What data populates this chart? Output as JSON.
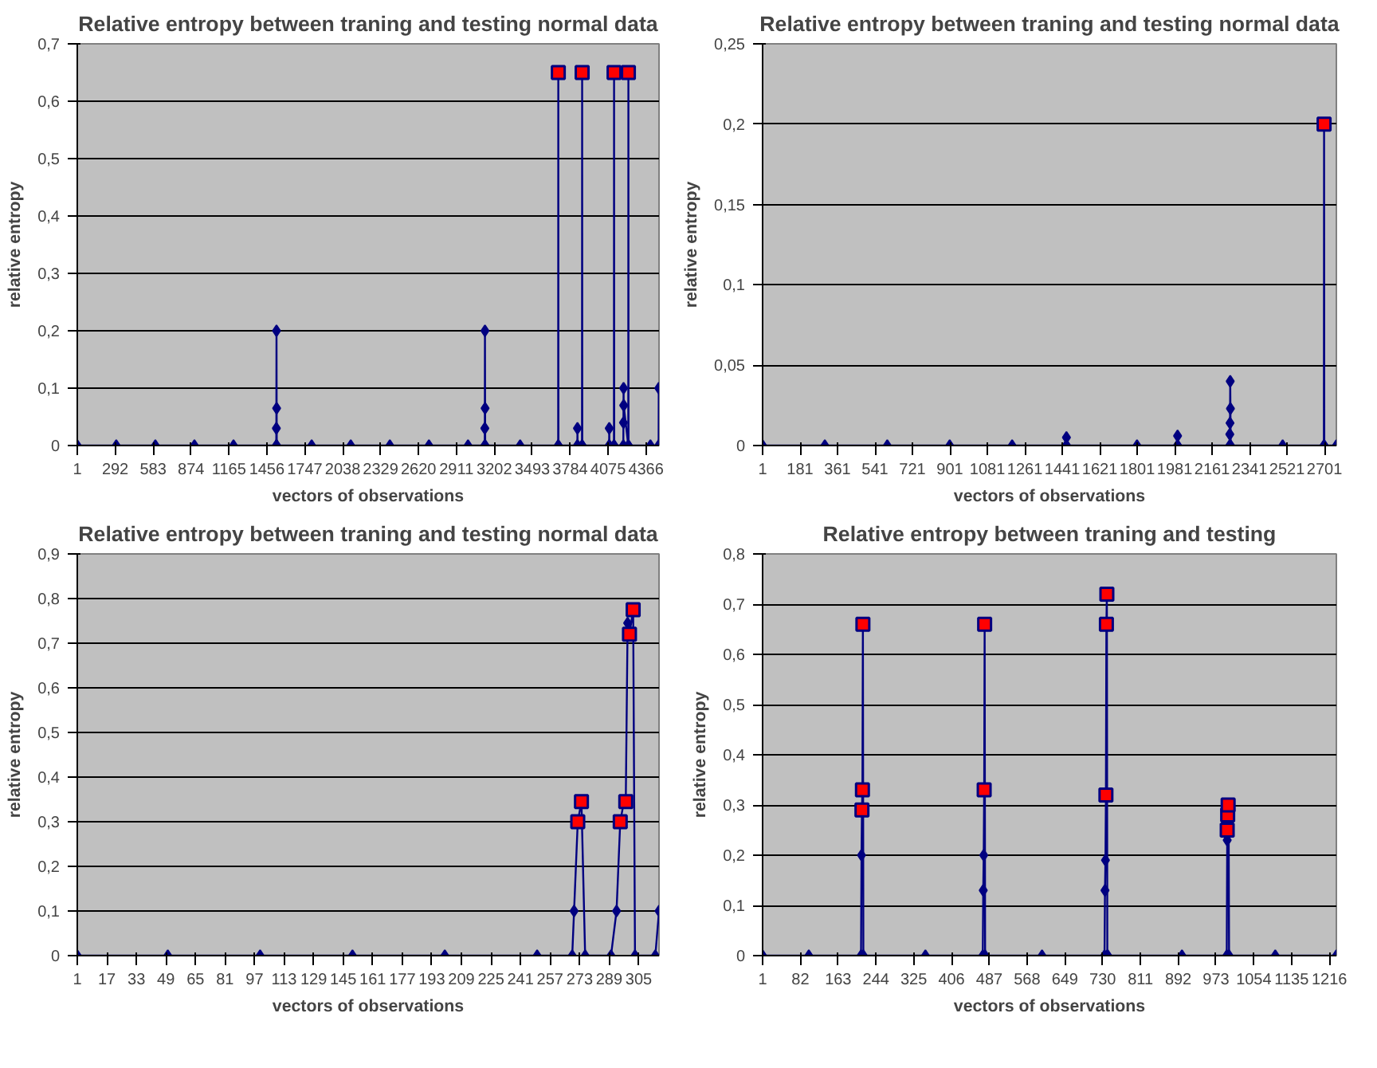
{
  "chart_data": [
    {
      "type": "line",
      "title": "Relative entropy between traning and testing normal data",
      "xlabel": "vectors of observations",
      "ylabel": "relative entropy",
      "marker": "diamond",
      "grid": "y",
      "xlim": [
        1,
        4466
      ],
      "xticks": [
        1,
        292,
        583,
        874,
        1165,
        1456,
        1747,
        2038,
        2329,
        2620,
        2911,
        3202,
        3493,
        3784,
        4075,
        4366
      ],
      "ylim": [
        0,
        0.7
      ],
      "yticks": [
        0,
        {
          "value": 0.1,
          "label": "0,1"
        },
        {
          "value": 0.2,
          "label": "0,2"
        },
        {
          "value": 0.3,
          "label": "0,3"
        },
        {
          "value": 0.4,
          "label": "0,4"
        },
        {
          "value": 0.5,
          "label": "0,5"
        },
        {
          "value": 0.6,
          "label": "0,6"
        },
        {
          "value": 0.7,
          "label": "0,7"
        }
      ],
      "series": [
        {
          "color": "#000080",
          "x": [
            1,
            300,
            600,
            900,
            1200,
            1528,
            1529,
            1530,
            1531,
            1532,
            1800,
            2100,
            2400,
            2700,
            3000,
            3128,
            3129,
            3130,
            3131,
            3132,
            3400,
            3692,
            3693,
            3694,
            3839,
            3840,
            3841,
            3875,
            3876,
            3877,
            4083,
            4084,
            4085,
            4120,
            4121,
            4122,
            4192,
            4193,
            4194,
            4195,
            4230,
            4231,
            4232,
            4400,
            4463,
            4464
          ],
          "values": [
            0,
            0,
            0,
            0,
            0,
            0,
            0.03,
            0.2,
            0.065,
            0,
            0,
            0,
            0,
            0,
            0,
            0,
            0.03,
            0.2,
            0.065,
            0,
            0,
            0,
            0.65,
            0,
            0,
            0.03,
            0,
            0,
            0.65,
            0,
            0,
            0.03,
            0,
            0,
            0.65,
            0,
            0,
            0.04,
            0.1,
            0.07,
            0,
            0.65,
            0,
            0,
            0,
            0.1
          ]
        },
        {
          "type": "scatter",
          "marker": "square",
          "color": "#ff0000",
          "x": [
            3693,
            3876,
            4121,
            4231
          ],
          "values": [
            0.65,
            0.65,
            0.65,
            0.65
          ]
        }
      ]
    },
    {
      "type": "line",
      "title": "Relative entropy between traning and testing normal data",
      "xlabel": "vectors of observations",
      "ylabel": "relative entropy",
      "marker": "diamond",
      "grid": "y",
      "xlim": [
        1,
        2758
      ],
      "xticks": [
        1,
        181,
        361,
        541,
        721,
        901,
        1081,
        1261,
        1441,
        1621,
        1801,
        1981,
        2161,
        2341,
        2521,
        2701
      ],
      "ylim": [
        0,
        0.25
      ],
      "yticks": [
        0,
        {
          "value": 0.05,
          "label": "0,05"
        },
        {
          "value": 0.1,
          "label": "0,1"
        },
        {
          "value": 0.15,
          "label": "0,15"
        },
        {
          "value": 0.2,
          "label": "0,2"
        },
        {
          "value": 0.25,
          "label": "0,25"
        }
      ],
      "series": [
        {
          "color": "#000080",
          "x": [
            1,
            300,
            600,
            900,
            1200,
            1460,
            1461,
            1462,
            1800,
            1994,
            1995,
            1996,
            2245,
            2246,
            2247,
            2248,
            2249,
            2250,
            2500,
            2698,
            2699,
            2700,
            2758
          ],
          "values": [
            0,
            0,
            0,
            0,
            0,
            0,
            0.005,
            0,
            0,
            0,
            0.006,
            0,
            0,
            0.007,
            0.014,
            0.04,
            0.023,
            0,
            0,
            0,
            0.2,
            0,
            0
          ]
        },
        {
          "type": "scatter",
          "marker": "square",
          "color": "#ff0000",
          "x": [
            2699
          ],
          "values": [
            0.2
          ]
        }
      ]
    },
    {
      "type": "line",
      "title": "Relative entropy between traning and testing normal data",
      "xlabel": "vectors of observations",
      "ylabel": "relative entropy",
      "marker": "diamond",
      "grid": "y",
      "xlim": [
        1,
        316
      ],
      "xticks": [
        1,
        17,
        33,
        49,
        65,
        81,
        97,
        113,
        129,
        145,
        161,
        177,
        193,
        209,
        225,
        241,
        257,
        273,
        289,
        305
      ],
      "ylim": [
        0,
        0.9
      ],
      "yticks": [
        0,
        {
          "value": 0.1,
          "label": "0,1"
        },
        {
          "value": 0.2,
          "label": "0,2"
        },
        {
          "value": 0.3,
          "label": "0,3"
        },
        {
          "value": 0.4,
          "label": "0,4"
        },
        {
          "value": 0.5,
          "label": "0,5"
        },
        {
          "value": 0.6,
          "label": "0,6"
        },
        {
          "value": 0.7,
          "label": "0,7"
        },
        {
          "value": 0.8,
          "label": "0,8"
        },
        {
          "value": 0.9,
          "label": "0,9"
        }
      ],
      "series": [
        {
          "color": "#000080",
          "x": [
            1,
            50,
            100,
            150,
            200,
            250,
            269,
            270,
            272,
            274,
            276,
            290,
            293,
            295,
            297,
            298,
            299,
            300,
            302,
            303,
            314,
            316
          ],
          "values": [
            0,
            0,
            0,
            0,
            0,
            0,
            0,
            0.1,
            0.3,
            0.345,
            0,
            0,
            0.1,
            0.3,
            0.345,
            0.345,
            0.745,
            0.72,
            0.775,
            0,
            0,
            0.1
          ]
        },
        {
          "type": "scatter",
          "marker": "square",
          "color": "#ff0000",
          "x": [
            272,
            274,
            295,
            298,
            300,
            302
          ],
          "values": [
            0.3,
            0.345,
            0.3,
            0.345,
            0.72,
            0.775
          ]
        }
      ]
    },
    {
      "type": "line",
      "title": "Relative entropy between traning and testing",
      "xlabel": "vectors of observations",
      "ylabel": "relative entropy",
      "marker": "diamond",
      "grid": "y",
      "xlim": [
        1,
        1231
      ],
      "xticks": [
        1,
        82,
        163,
        244,
        325,
        406,
        487,
        568,
        649,
        730,
        811,
        892,
        973,
        1054,
        1135,
        1216
      ],
      "ylim": [
        0,
        0.8
      ],
      "yticks": [
        0,
        {
          "value": 0.1,
          "label": "0,1"
        },
        {
          "value": 0.2,
          "label": "0,2"
        },
        {
          "value": 0.3,
          "label": "0,3"
        },
        {
          "value": 0.4,
          "label": "0,4"
        },
        {
          "value": 0.5,
          "label": "0,5"
        },
        {
          "value": 0.6,
          "label": "0,6"
        },
        {
          "value": 0.7,
          "label": "0,7"
        },
        {
          "value": 0.8,
          "label": "0,8"
        }
      ],
      "series": [
        {
          "color": "#000080",
          "x": [
            1,
            100,
            212,
            213,
            214,
            215,
            216,
            217,
            350,
            473,
            474,
            475,
            476,
            477,
            478,
            600,
            734,
            735,
            736,
            737,
            738,
            739,
            740,
            741,
            900,
            996,
            997,
            998,
            999,
            1000,
            1001,
            1100,
            1231
          ],
          "values": [
            0,
            0,
            0,
            0.2,
            0.29,
            0.33,
            0.66,
            0,
            0,
            0,
            0.13,
            0.2,
            0.33,
            0.66,
            0,
            0,
            0,
            0.13,
            0.19,
            0.32,
            0.66,
            0.72,
            0,
            0,
            0,
            0,
            0.23,
            0.25,
            0.28,
            0.3,
            0,
            0,
            0
          ]
        },
        {
          "type": "scatter",
          "marker": "square",
          "color": "#ff0000",
          "x": [
            214,
            215,
            216,
            476,
            477,
            737,
            738,
            739,
            997,
            998,
            999
          ],
          "values": [
            0.29,
            0.33,
            0.66,
            0.33,
            0.66,
            0.32,
            0.66,
            0.72,
            0.25,
            0.28,
            0.3
          ]
        }
      ]
    }
  ]
}
